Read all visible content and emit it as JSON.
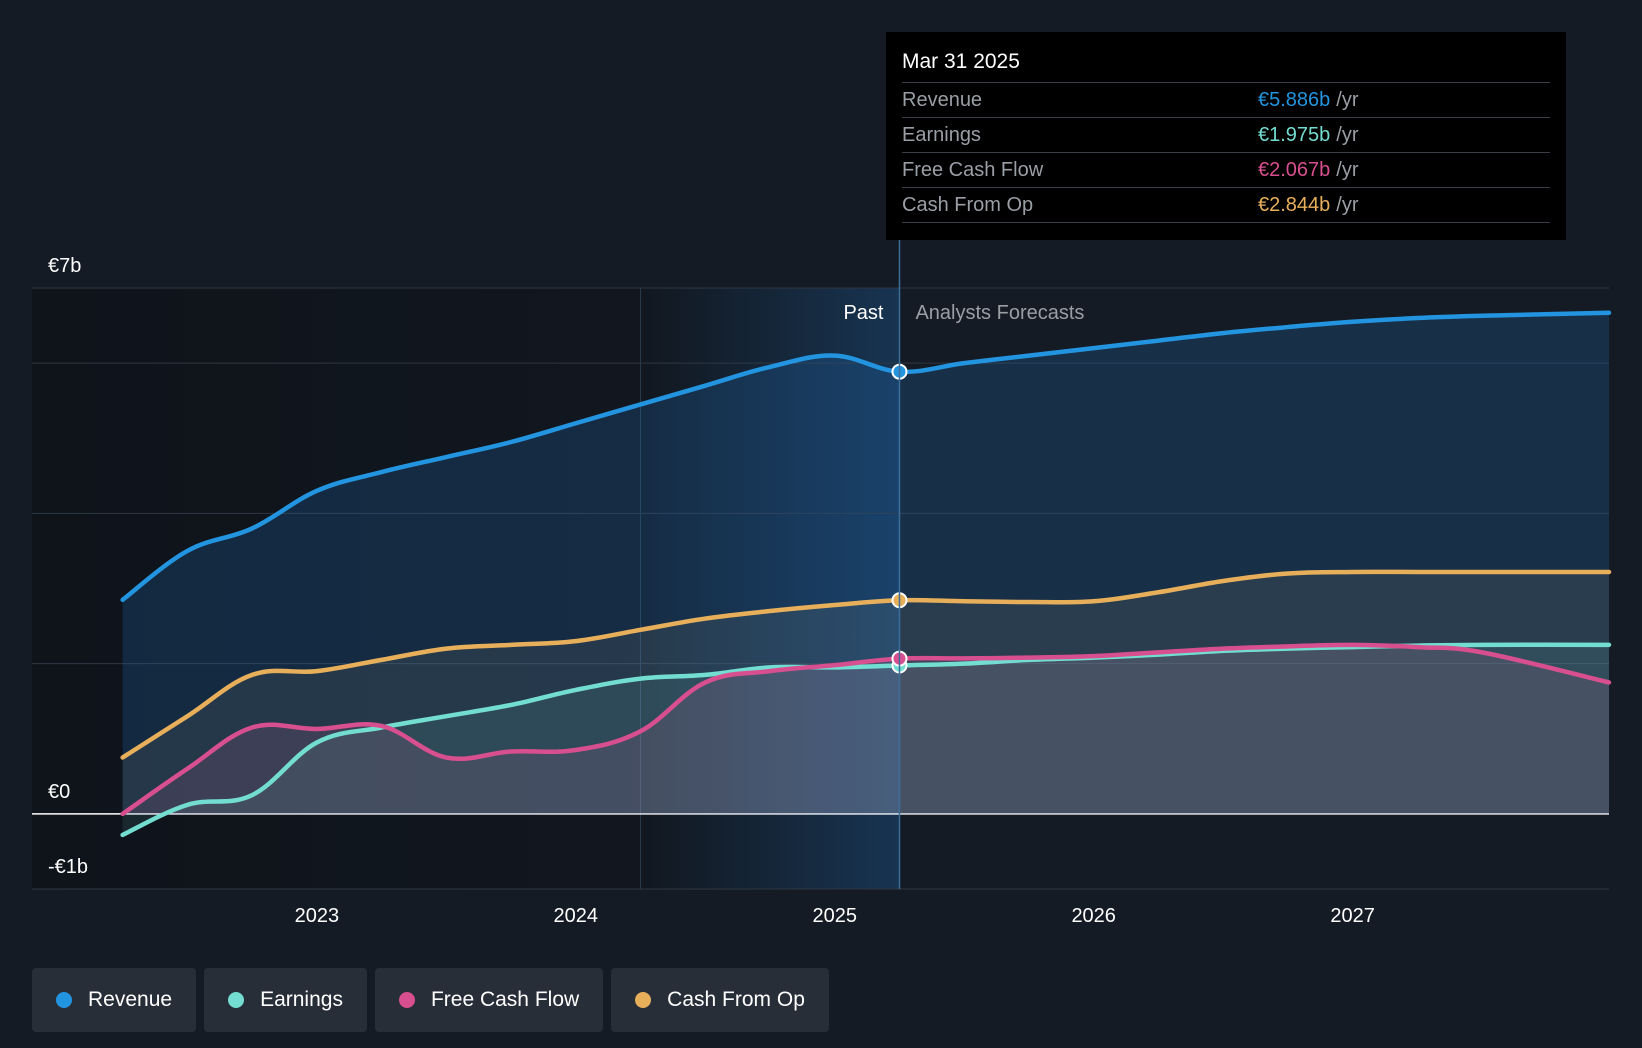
{
  "chart_data": {
    "type": "line",
    "y_unit": "€ billions",
    "ylim": [
      -1,
      7
    ],
    "y_ticks": [
      {
        "value": 7,
        "label": "€7b"
      },
      {
        "value": 0,
        "label": "€0"
      },
      {
        "value": -1,
        "label": "-€1b"
      }
    ],
    "y_gridlines": [
      7,
      6,
      4,
      2,
      0,
      -1
    ],
    "x_ticks": [
      {
        "value": 2023,
        "label": "2023"
      },
      {
        "value": 2024,
        "label": "2024"
      },
      {
        "value": 2025,
        "label": "2025"
      },
      {
        "value": 2026,
        "label": "2026"
      },
      {
        "value": 2027,
        "label": "2027"
      }
    ],
    "xlim": [
      2021.9,
      2027.99
    ],
    "past_label": "Past",
    "forecast_label": "Analysts Forecasts",
    "divider_x": 2025.25,
    "highlight_start_x": 2024.25,
    "series": [
      {
        "name": "Revenue",
        "color": "#2394df",
        "points": [
          [
            2022.25,
            2.85
          ],
          [
            2022.5,
            3.5
          ],
          [
            2022.75,
            3.8
          ],
          [
            2023.0,
            4.3
          ],
          [
            2023.25,
            4.55
          ],
          [
            2023.5,
            4.75
          ],
          [
            2023.75,
            4.95
          ],
          [
            2024.0,
            5.2
          ],
          [
            2024.25,
            5.45
          ],
          [
            2024.5,
            5.7
          ],
          [
            2024.75,
            5.95
          ],
          [
            2025.0,
            6.1
          ],
          [
            2025.25,
            5.886
          ],
          [
            2025.5,
            6.0
          ],
          [
            2025.75,
            6.1
          ],
          [
            2026.0,
            6.2
          ],
          [
            2026.25,
            6.3
          ],
          [
            2026.5,
            6.4
          ],
          [
            2026.75,
            6.48
          ],
          [
            2027.0,
            6.55
          ],
          [
            2027.25,
            6.6
          ],
          [
            2027.5,
            6.63
          ],
          [
            2027.99,
            6.67
          ]
        ]
      },
      {
        "name": "Earnings",
        "color": "#72ddd0",
        "points": [
          [
            2022.25,
            -0.28
          ],
          [
            2022.5,
            0.12
          ],
          [
            2022.75,
            0.25
          ],
          [
            2023.0,
            0.95
          ],
          [
            2023.25,
            1.15
          ],
          [
            2023.5,
            1.3
          ],
          [
            2023.75,
            1.45
          ],
          [
            2024.0,
            1.65
          ],
          [
            2024.25,
            1.8
          ],
          [
            2024.5,
            1.85
          ],
          [
            2024.75,
            1.95
          ],
          [
            2025.0,
            1.95
          ],
          [
            2025.25,
            1.975
          ],
          [
            2025.5,
            2.0
          ],
          [
            2025.75,
            2.05
          ],
          [
            2026.0,
            2.08
          ],
          [
            2026.25,
            2.12
          ],
          [
            2026.5,
            2.17
          ],
          [
            2026.75,
            2.2
          ],
          [
            2027.0,
            2.22
          ],
          [
            2027.25,
            2.24
          ],
          [
            2027.5,
            2.25
          ],
          [
            2027.99,
            2.25
          ]
        ]
      },
      {
        "name": "Free Cash Flow",
        "color": "#d84f8f",
        "points": [
          [
            2022.25,
            0.0
          ],
          [
            2022.5,
            0.6
          ],
          [
            2022.75,
            1.15
          ],
          [
            2023.0,
            1.13
          ],
          [
            2023.25,
            1.17
          ],
          [
            2023.5,
            0.75
          ],
          [
            2023.75,
            0.83
          ],
          [
            2024.0,
            0.85
          ],
          [
            2024.25,
            1.1
          ],
          [
            2024.5,
            1.75
          ],
          [
            2024.75,
            1.9
          ],
          [
            2025.0,
            1.98
          ],
          [
            2025.25,
            2.067
          ],
          [
            2025.5,
            2.07
          ],
          [
            2025.75,
            2.08
          ],
          [
            2026.0,
            2.1
          ],
          [
            2026.25,
            2.15
          ],
          [
            2026.5,
            2.2
          ],
          [
            2026.75,
            2.23
          ],
          [
            2027.0,
            2.25
          ],
          [
            2027.25,
            2.22
          ],
          [
            2027.5,
            2.15
          ],
          [
            2027.99,
            1.75
          ]
        ]
      },
      {
        "name": "Cash From Op",
        "color": "#e8af5b",
        "points": [
          [
            2022.25,
            0.75
          ],
          [
            2022.5,
            1.3
          ],
          [
            2022.75,
            1.85
          ],
          [
            2023.0,
            1.9
          ],
          [
            2023.25,
            2.05
          ],
          [
            2023.5,
            2.2
          ],
          [
            2023.75,
            2.25
          ],
          [
            2024.0,
            2.3
          ],
          [
            2024.25,
            2.45
          ],
          [
            2024.5,
            2.6
          ],
          [
            2024.75,
            2.7
          ],
          [
            2025.0,
            2.78
          ],
          [
            2025.25,
            2.844
          ],
          [
            2025.5,
            2.83
          ],
          [
            2025.75,
            2.82
          ],
          [
            2026.0,
            2.83
          ],
          [
            2026.25,
            2.95
          ],
          [
            2026.5,
            3.1
          ],
          [
            2026.75,
            3.2
          ],
          [
            2027.0,
            3.22
          ],
          [
            2027.25,
            3.22
          ],
          [
            2027.5,
            3.22
          ],
          [
            2027.99,
            3.22
          ]
        ]
      }
    ]
  },
  "tooltip": {
    "date": "Mar 31 2025",
    "unit": "/yr",
    "rows": [
      {
        "name": "Revenue",
        "value": "€5.886b",
        "color": "#2394df"
      },
      {
        "name": "Earnings",
        "value": "€1.975b",
        "color": "#72ddd0"
      },
      {
        "name": "Free Cash Flow",
        "value": "€2.067b",
        "color": "#d84f8f"
      },
      {
        "name": "Cash From Op",
        "value": "€2.844b",
        "color": "#e8af5b"
      }
    ]
  },
  "legend": [
    {
      "label": "Revenue",
      "color": "#2394df"
    },
    {
      "label": "Earnings",
      "color": "#72ddd0"
    },
    {
      "label": "Free Cash Flow",
      "color": "#d84f8f"
    },
    {
      "label": "Cash From Op",
      "color": "#e8af5b"
    }
  ]
}
